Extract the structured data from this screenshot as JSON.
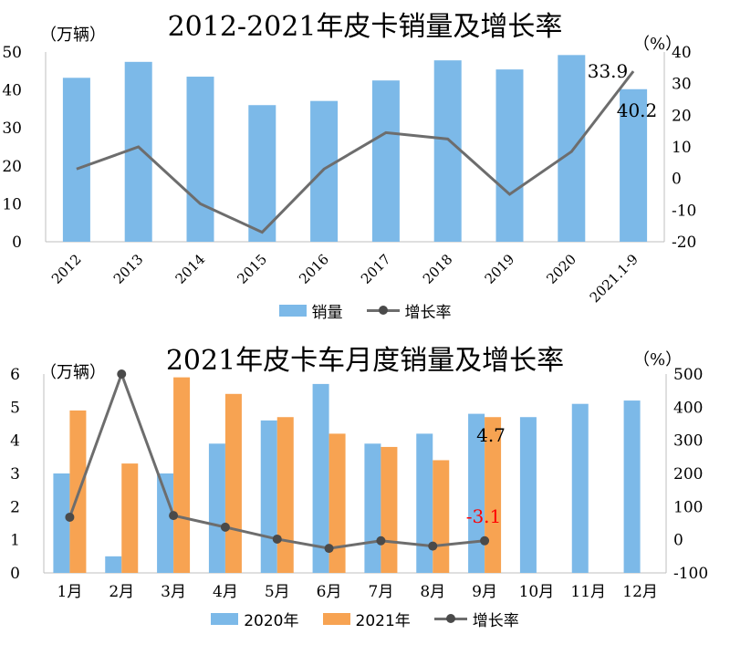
{
  "chart_data": [
    {
      "type": "bar+line",
      "title": "2012-2021年皮卡销量及增长率",
      "left_unit": "（万辆）",
      "right_unit": "（%）",
      "categories": [
        "2012",
        "2013",
        "2014",
        "2015",
        "2016",
        "2017",
        "2018",
        "2019",
        "2020",
        "2021.1-9"
      ],
      "series": [
        {
          "name": "销量",
          "kind": "bar",
          "axis": "left",
          "color": "#7cb9e8",
          "values": [
            43.2,
            47.4,
            43.5,
            36.0,
            37.1,
            42.5,
            47.8,
            45.4,
            49.2,
            40.2
          ]
        },
        {
          "name": "增长率",
          "kind": "line",
          "axis": "right",
          "color": "#6d6d6d",
          "values": [
            3,
            10,
            -8,
            -17,
            3,
            14.5,
            12.5,
            -5,
            8.5,
            33.9
          ]
        }
      ],
      "left_ylim": [
        0,
        50
      ],
      "left_ticks": [
        "0",
        "10",
        "20",
        "30",
        "40",
        "50"
      ],
      "right_ylim": [
        -20,
        40
      ],
      "right_ticks": [
        "-20",
        "-10",
        "0",
        "10",
        "20",
        "30",
        "40"
      ],
      "annotations": [
        {
          "text": "33.9",
          "color": "#000000"
        },
        {
          "text": "40.2",
          "color": "#000000"
        }
      ],
      "legend": {
        "bar_label": "销量",
        "line_label": "增长率"
      }
    },
    {
      "type": "bar+line",
      "title": "2021年皮卡车月度销量及增长率",
      "left_unit": "（万辆）",
      "right_unit": "（%）",
      "categories": [
        "1月",
        "2月",
        "3月",
        "4月",
        "5月",
        "6月",
        "7月",
        "8月",
        "9月",
        "10月",
        "11月",
        "12月"
      ],
      "series": [
        {
          "name": "2020年",
          "kind": "bar",
          "axis": "left",
          "color": "#7cb9e8",
          "values": [
            3.0,
            0.5,
            3.0,
            3.9,
            4.6,
            5.7,
            3.9,
            4.2,
            4.8,
            4.7,
            5.1,
            5.2
          ]
        },
        {
          "name": "2021年",
          "kind": "bar",
          "axis": "left",
          "color": "#f7a352",
          "values": [
            4.9,
            3.3,
            5.9,
            5.4,
            4.7,
            4.2,
            3.8,
            3.4,
            4.7,
            null,
            null,
            null
          ]
        },
        {
          "name": "增长率",
          "kind": "line",
          "axis": "right",
          "color": "#6d6d6d",
          "values": [
            68,
            500,
            73,
            38,
            2,
            -26,
            -3,
            -19,
            -3.1,
            null,
            null,
            null
          ]
        }
      ],
      "left_ylim": [
        0,
        6
      ],
      "left_ticks": [
        "0",
        "1",
        "2",
        "3",
        "4",
        "5",
        "6"
      ],
      "right_ylim": [
        -100,
        500
      ],
      "right_ticks": [
        "-100",
        "0",
        "100",
        "200",
        "300",
        "400",
        "500"
      ],
      "annotations": [
        {
          "text": "4.7",
          "color": "#000000"
        },
        {
          "text": "-3.1",
          "color": "#ff0000"
        }
      ],
      "legend": {
        "bar1_label": "2020年",
        "bar2_label": "2021年",
        "line_label": "增长率"
      }
    }
  ]
}
